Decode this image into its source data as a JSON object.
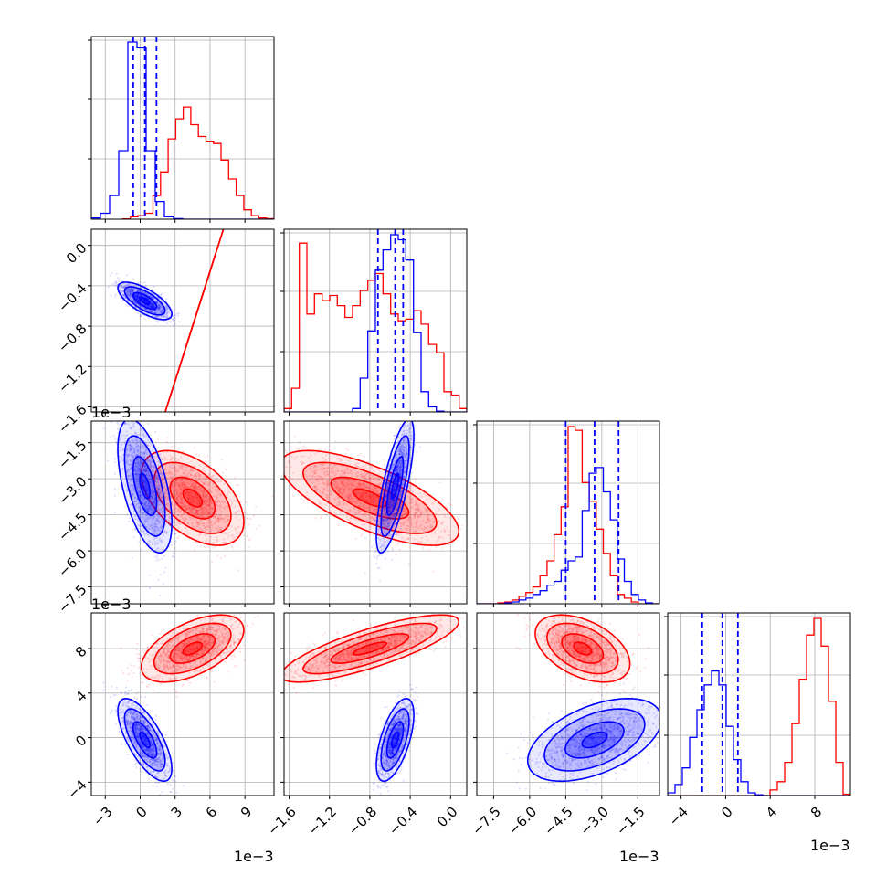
{
  "chart_data": {
    "type": "corner",
    "params": [
      {
        "ticks": [
          -3,
          0,
          3,
          6,
          9
        ],
        "tick_labels": [
          "−3",
          "0",
          "3",
          "6",
          "9"
        ],
        "range": [
          -4.2,
          11.5
        ],
        "offset": "1e−3"
      },
      {
        "ticks": [
          -1.6,
          -1.2,
          -0.8,
          -0.4,
          0.0
        ],
        "tick_labels": [
          "−1.6",
          "−1.2",
          "−0.8",
          "−0.4",
          "0.0"
        ],
        "range": [
          -1.65,
          0.16
        ],
        "offset": "1e−3"
      },
      {
        "ticks": [
          -7.5,
          -6.0,
          -4.5,
          -3.0,
          -1.5
        ],
        "tick_labels": [
          "−7.5",
          "−6.0",
          "−4.5",
          "−3.0",
          "−1.5"
        ],
        "range": [
          -8.2,
          -0.6
        ],
        "offset": "1e−3"
      },
      {
        "ticks": [
          -4,
          0,
          4,
          8
        ],
        "tick_labels": [
          "−4",
          "0",
          "4",
          "8"
        ],
        "range": [
          -5.2,
          11.2
        ],
        "offset": "1e−3"
      }
    ],
    "series": [
      {
        "color": "#ff0000",
        "means": [
          4.5,
          -0.8,
          -3.8,
          8.0
        ],
        "sd": [
          1.9,
          0.38,
          0.85,
          1.3
        ],
        "corr": [
          [
            0,
            1,
            2
          ],
          [
            0,
            2,
            -0.5
          ],
          [
            1,
            2,
            -0.7
          ],
          [
            0,
            3,
            0.55
          ],
          [
            1,
            3,
            0.8
          ],
          [
            2,
            3,
            -0.45
          ]
        ],
        "quantile_lines": [],
        "histograms": [
          {
            "edges": [
              -1.5,
              11.5
            ],
            "counts": [
              0.3,
              2,
              3,
              5,
              20,
              40,
              68,
              85,
              95,
              80,
              70,
              66,
              64,
              50,
              34,
              20,
              8,
              3,
              1,
              0.5
            ]
          },
          {
            "edges": [
              -1.65,
              0.16
            ],
            "counts": [
              2,
              14,
              100,
              58,
              70,
              66,
              69,
              63,
              56,
              63,
              72,
              78,
              82,
              70,
              58,
              54,
              55,
              60,
              52,
              40,
              35,
              12,
              10,
              2
            ]
          },
          {
            "edges": [
              -8.2,
              -0.6
            ],
            "counts": [
              0,
              0,
              0,
              0.5,
              1,
              2,
              4,
              6,
              9,
              15,
              23,
              37,
              52,
              95,
              93,
              65,
              55,
              40,
              27,
              15,
              5,
              3,
              1,
              0,
              0,
              0
            ]
          },
          {
            "edges": [
              -5.2,
              11.2
            ],
            "counts": [
              0,
              0,
              0,
              0,
              0,
              0,
              0,
              0,
              0,
              0,
              0,
              0,
              0,
              0,
              2,
              5,
              12,
              26,
              42,
              58,
              64,
              54,
              34,
              12,
              0.5
            ]
          }
        ]
      },
      {
        "color": "#0000ff",
        "means": [
          0.4,
          -0.55,
          -3.3,
          -0.2
        ],
        "sd": [
          1.0,
          0.08,
          1.2,
          1.6
        ],
        "corr": [
          [
            0,
            1,
            -0.7
          ],
          [
            0,
            2,
            -0.55
          ],
          [
            1,
            2,
            0.75
          ],
          [
            0,
            3,
            -0.7
          ],
          [
            1,
            3,
            0.6
          ],
          [
            2,
            3,
            0.5
          ]
        ],
        "quantile_lines": [
          [
            -0.6,
            0.4,
            1.4
          ],
          [
            -0.72,
            -0.55,
            -0.47
          ],
          [
            -4.5,
            -3.3,
            -2.3
          ],
          [
            -2.1,
            -0.3,
            1.1
          ]
        ],
        "histograms": [
          {
            "edges": [
              -4.2,
              11.5
            ],
            "counts": [
              1,
              5,
              20,
              58,
              150,
              145,
              58,
              15,
              2,
              0.5,
              0,
              0,
              0,
              0,
              0,
              0,
              0,
              0,
              0,
              0
            ]
          },
          {
            "edges": [
              -1.65,
              0.16
            ],
            "counts": [
              0,
              0,
              0,
              0,
              0,
              0,
              0,
              0,
              0,
              2,
              20,
              48,
              84,
              96,
              105,
              102,
              90,
              47,
              12,
              3,
              0.5,
              0,
              0,
              0
            ]
          },
          {
            "edges": [
              -8.2,
              -0.6
            ],
            "counts": [
              0,
              0,
              0,
              0,
              0.5,
              1,
              2,
              3,
              5,
              7,
              10,
              12,
              18,
              23,
              25,
              50,
              70,
              73,
              60,
              45,
              24,
              12,
              5,
              2,
              0.5,
              0
            ]
          },
          {
            "edges": [
              -5.2,
              11.2
            ],
            "counts": [
              1,
              4,
              10,
              21,
              31,
              40,
              45,
              40,
              25,
              13,
              5,
              1,
              0.3,
              0,
              0,
              0,
              0,
              0,
              0,
              0,
              0,
              0,
              0,
              0,
              0
            ]
          }
        ]
      }
    ]
  }
}
